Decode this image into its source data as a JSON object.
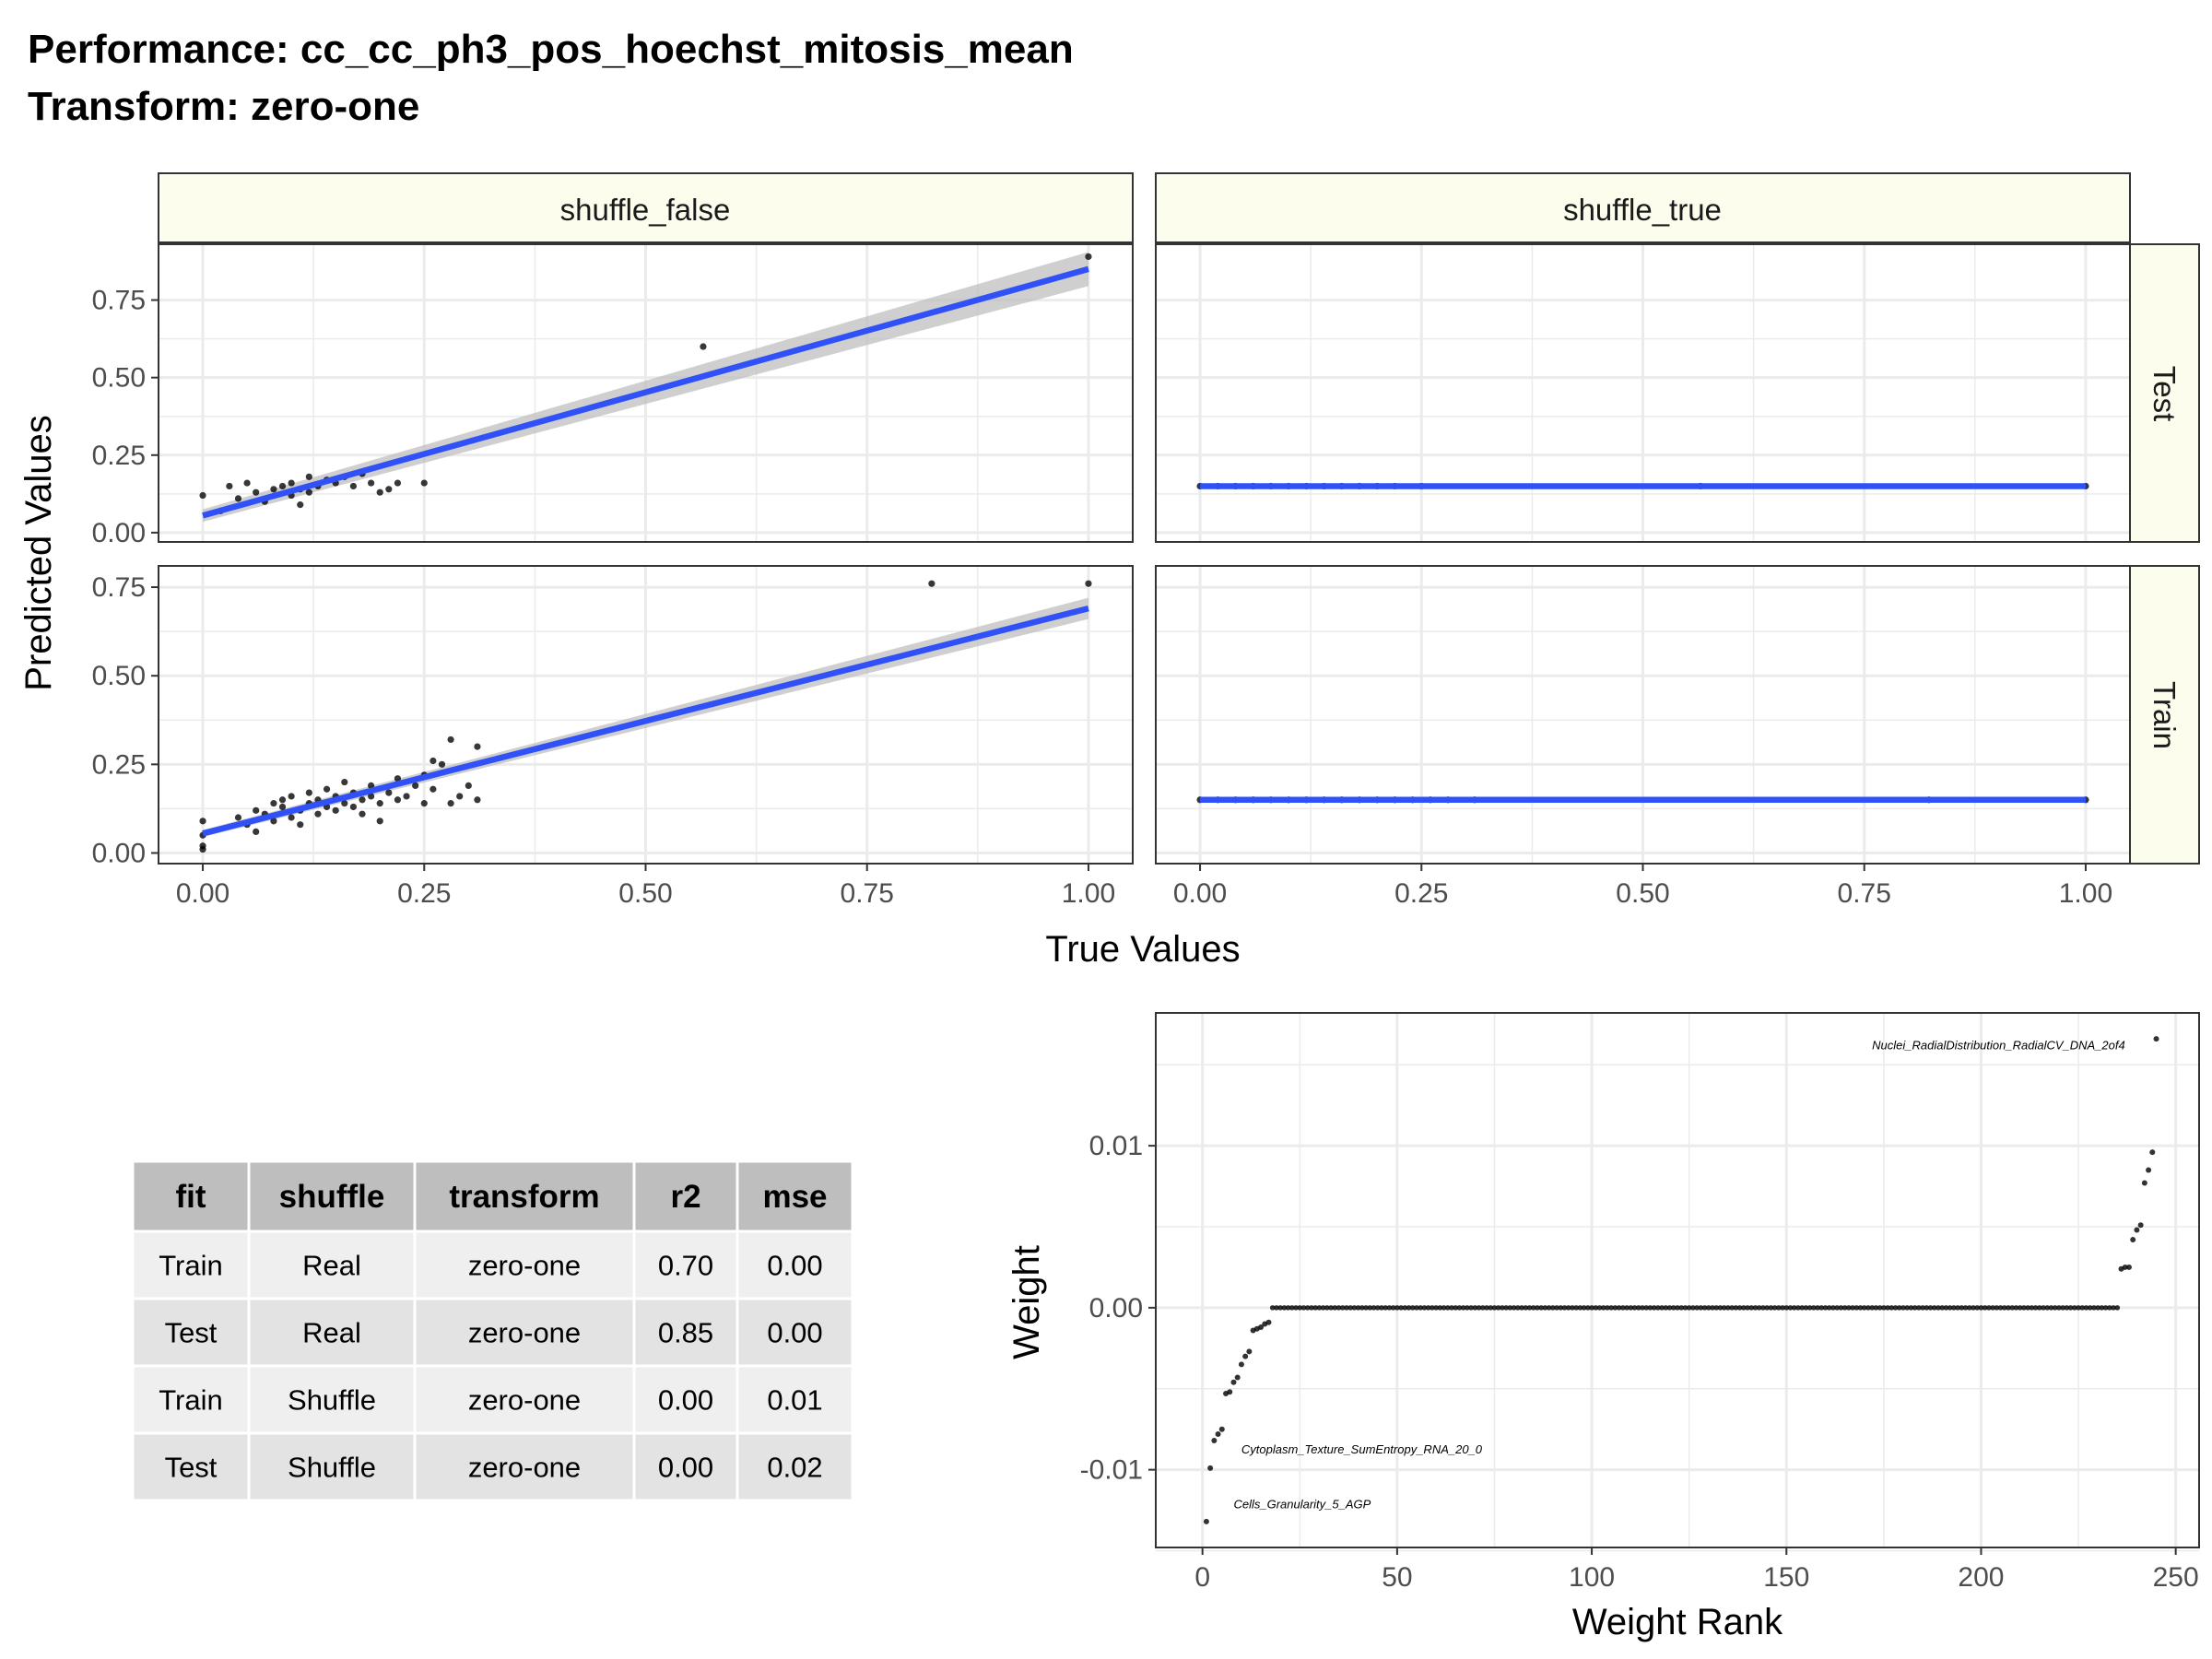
{
  "title": {
    "line1": "Performance: cc_cc_ph3_pos_hoechst_mitosis_mean",
    "line2": "Transform: zero-one"
  },
  "facets": {
    "columns": [
      "shuffle_false",
      "shuffle_true"
    ],
    "rows": [
      "Test",
      "Train"
    ]
  },
  "scatter_axes": {
    "xlabel": "True Values",
    "ylabel": "Predicted Values",
    "x_ticks": [
      "0.00",
      "0.25",
      "0.50",
      "0.75",
      "1.00"
    ],
    "test_y_ticks": [
      "0.00",
      "0.25",
      "0.50",
      "0.75"
    ],
    "train_y_ticks": [
      "0.00",
      "0.25",
      "0.50",
      "0.75"
    ]
  },
  "weight_axes": {
    "xlabel": "Weight Rank",
    "ylabel": "Weight",
    "x_ticks": [
      "0",
      "50",
      "100",
      "150",
      "200",
      "250"
    ],
    "y_ticks": [
      "-0.01",
      "0.00",
      "0.01"
    ],
    "annotations": [
      "Nuclei_RadialDistribution_RadialCV_DNA_2of4",
      "Cytoplasm_Texture_SumEntropy_RNA_20_0",
      "Cells_Granularity_5_AGP"
    ]
  },
  "table": {
    "headers": [
      "fit",
      "shuffle",
      "transform",
      "r2",
      "mse"
    ],
    "rows": [
      [
        "Train",
        "Real",
        "zero-one",
        "0.70",
        "0.00"
      ],
      [
        "Test",
        "Real",
        "zero-one",
        "0.85",
        "0.00"
      ],
      [
        "Train",
        "Shuffle",
        "zero-one",
        "0.00",
        "0.01"
      ],
      [
        "Test",
        "Shuffle",
        "zero-one",
        "0.00",
        "0.02"
      ]
    ]
  },
  "colors": {
    "fit_line": "#3050f8",
    "confidence_band": "#bfbfbf",
    "points": "#000000",
    "strip_fill": "#fcfdec",
    "grid": "#ebebeb",
    "table_header": "#bebebe",
    "table_row_odd": "#efefef",
    "table_row_even": "#e3e3e3"
  },
  "chart_data": [
    {
      "type": "scatter",
      "panel": "shuffle_false / Test",
      "xlim": [
        -0.05,
        1.05
      ],
      "ylim": [
        -0.03,
        0.93
      ],
      "points": [
        [
          0.0,
          0.12
        ],
        [
          0.02,
          0.07
        ],
        [
          0.03,
          0.15
        ],
        [
          0.04,
          0.11
        ],
        [
          0.05,
          0.16
        ],
        [
          0.06,
          0.13
        ],
        [
          0.07,
          0.1
        ],
        [
          0.08,
          0.14
        ],
        [
          0.09,
          0.15
        ],
        [
          0.1,
          0.12
        ],
        [
          0.1,
          0.16
        ],
        [
          0.11,
          0.09
        ],
        [
          0.11,
          0.14
        ],
        [
          0.12,
          0.18
        ],
        [
          0.12,
          0.13
        ],
        [
          0.13,
          0.15
        ],
        [
          0.14,
          0.17
        ],
        [
          0.15,
          0.16
        ],
        [
          0.16,
          0.18
        ],
        [
          0.17,
          0.15
        ],
        [
          0.18,
          0.19
        ],
        [
          0.19,
          0.16
        ],
        [
          0.2,
          0.13
        ],
        [
          0.21,
          0.14
        ],
        [
          0.22,
          0.16
        ],
        [
          0.25,
          0.16
        ],
        [
          0.565,
          0.6
        ],
        [
          1.0,
          0.89
        ]
      ],
      "fit": {
        "x": [
          0.0,
          1.0
        ],
        "y": [
          0.055,
          0.85
        ],
        "band_start": 0.02,
        "band_end": 0.055
      }
    },
    {
      "type": "scatter",
      "panel": "shuffle_true / Test",
      "xlim": [
        -0.05,
        1.05
      ],
      "ylim": [
        -0.03,
        0.93
      ],
      "points": [
        [
          0.0,
          0.15
        ],
        [
          0.02,
          0.15
        ],
        [
          0.04,
          0.15
        ],
        [
          0.06,
          0.15
        ],
        [
          0.08,
          0.15
        ],
        [
          0.1,
          0.15
        ],
        [
          0.12,
          0.15
        ],
        [
          0.14,
          0.15
        ],
        [
          0.16,
          0.15
        ],
        [
          0.18,
          0.15
        ],
        [
          0.2,
          0.15
        ],
        [
          0.22,
          0.15
        ],
        [
          0.25,
          0.15
        ],
        [
          0.565,
          0.15
        ],
        [
          1.0,
          0.15
        ]
      ],
      "fit": {
        "x": [
          0.0,
          1.0
        ],
        "y": [
          0.15,
          0.15
        ],
        "band_start": 0.005,
        "band_end": 0.005
      }
    },
    {
      "type": "scatter",
      "panel": "shuffle_false / Train",
      "xlim": [
        -0.05,
        1.05
      ],
      "ylim": [
        -0.03,
        0.81
      ],
      "points": [
        [
          0.0,
          0.09
        ],
        [
          0.0,
          0.05
        ],
        [
          0.0,
          0.02
        ],
        [
          0.0,
          0.01
        ],
        [
          0.04,
          0.1
        ],
        [
          0.05,
          0.08
        ],
        [
          0.06,
          0.06
        ],
        [
          0.06,
          0.12
        ],
        [
          0.07,
          0.11
        ],
        [
          0.08,
          0.14
        ],
        [
          0.08,
          0.09
        ],
        [
          0.09,
          0.13
        ],
        [
          0.09,
          0.15
        ],
        [
          0.1,
          0.1
        ],
        [
          0.1,
          0.16
        ],
        [
          0.11,
          0.12
        ],
        [
          0.11,
          0.08
        ],
        [
          0.12,
          0.14
        ],
        [
          0.12,
          0.17
        ],
        [
          0.13,
          0.11
        ],
        [
          0.13,
          0.15
        ],
        [
          0.14,
          0.13
        ],
        [
          0.14,
          0.18
        ],
        [
          0.15,
          0.12
        ],
        [
          0.15,
          0.16
        ],
        [
          0.16,
          0.14
        ],
        [
          0.16,
          0.2
        ],
        [
          0.17,
          0.13
        ],
        [
          0.17,
          0.17
        ],
        [
          0.18,
          0.15
        ],
        [
          0.18,
          0.11
        ],
        [
          0.19,
          0.16
        ],
        [
          0.19,
          0.19
        ],
        [
          0.2,
          0.14
        ],
        [
          0.2,
          0.09
        ],
        [
          0.21,
          0.17
        ],
        [
          0.22,
          0.15
        ],
        [
          0.22,
          0.21
        ],
        [
          0.23,
          0.16
        ],
        [
          0.24,
          0.19
        ],
        [
          0.25,
          0.14
        ],
        [
          0.25,
          0.22
        ],
        [
          0.26,
          0.18
        ],
        [
          0.27,
          0.25
        ],
        [
          0.28,
          0.32
        ],
        [
          0.29,
          0.16
        ],
        [
          0.3,
          0.19
        ],
        [
          0.31,
          0.15
        ],
        [
          0.31,
          0.3
        ],
        [
          0.28,
          0.14
        ],
        [
          0.26,
          0.26
        ],
        [
          0.823,
          0.76
        ],
        [
          1.0,
          0.76
        ]
      ],
      "fit": {
        "x": [
          0.0,
          1.0
        ],
        "y": [
          0.055,
          0.69
        ],
        "band_start": 0.01,
        "band_end": 0.03
      }
    },
    {
      "type": "scatter",
      "panel": "shuffle_true / Train",
      "xlim": [
        -0.05,
        1.05
      ],
      "ylim": [
        -0.03,
        0.81
      ],
      "points": [
        [
          0.0,
          0.15
        ],
        [
          0.02,
          0.15
        ],
        [
          0.04,
          0.15
        ],
        [
          0.06,
          0.15
        ],
        [
          0.08,
          0.15
        ],
        [
          0.1,
          0.15
        ],
        [
          0.12,
          0.15
        ],
        [
          0.14,
          0.15
        ],
        [
          0.16,
          0.15
        ],
        [
          0.18,
          0.15
        ],
        [
          0.2,
          0.15
        ],
        [
          0.22,
          0.15
        ],
        [
          0.24,
          0.15
        ],
        [
          0.26,
          0.15
        ],
        [
          0.28,
          0.15
        ],
        [
          0.31,
          0.15
        ],
        [
          0.823,
          0.15
        ],
        [
          1.0,
          0.15
        ]
      ],
      "fit": {
        "x": [
          0.0,
          1.0
        ],
        "y": [
          0.15,
          0.15
        ],
        "band_start": 0.004,
        "band_end": 0.004
      }
    },
    {
      "type": "scatter",
      "panel": "weight",
      "xlim": [
        -12,
        256
      ],
      "ylim": [
        -0.0148,
        0.0182
      ],
      "points": [
        [
          1,
          -0.0132
        ],
        [
          2,
          -0.0099
        ],
        [
          3,
          -0.0082
        ],
        [
          4,
          -0.0078
        ],
        [
          5,
          -0.0075
        ],
        [
          6,
          -0.0053
        ],
        [
          7,
          -0.0052
        ],
        [
          8,
          -0.0046
        ],
        [
          9,
          -0.0043
        ],
        [
          10,
          -0.0035
        ],
        [
          11,
          -0.003
        ],
        [
          12,
          -0.0027
        ],
        [
          13,
          -0.0014
        ],
        [
          14,
          -0.0013
        ],
        [
          15,
          -0.0012
        ],
        [
          16,
          -0.001
        ],
        [
          17,
          -0.0009
        ],
        [
          236,
          0.0024
        ],
        [
          237,
          0.0025
        ],
        [
          238,
          0.0025
        ],
        [
          239,
          0.0042
        ],
        [
          240,
          0.0048
        ],
        [
          241,
          0.0051
        ],
        [
          242,
          0.0077
        ],
        [
          243,
          0.0085
        ],
        [
          244,
          0.0096
        ],
        [
          245,
          0.0166
        ]
      ],
      "zero_range": [
        18,
        235
      ]
    }
  ]
}
